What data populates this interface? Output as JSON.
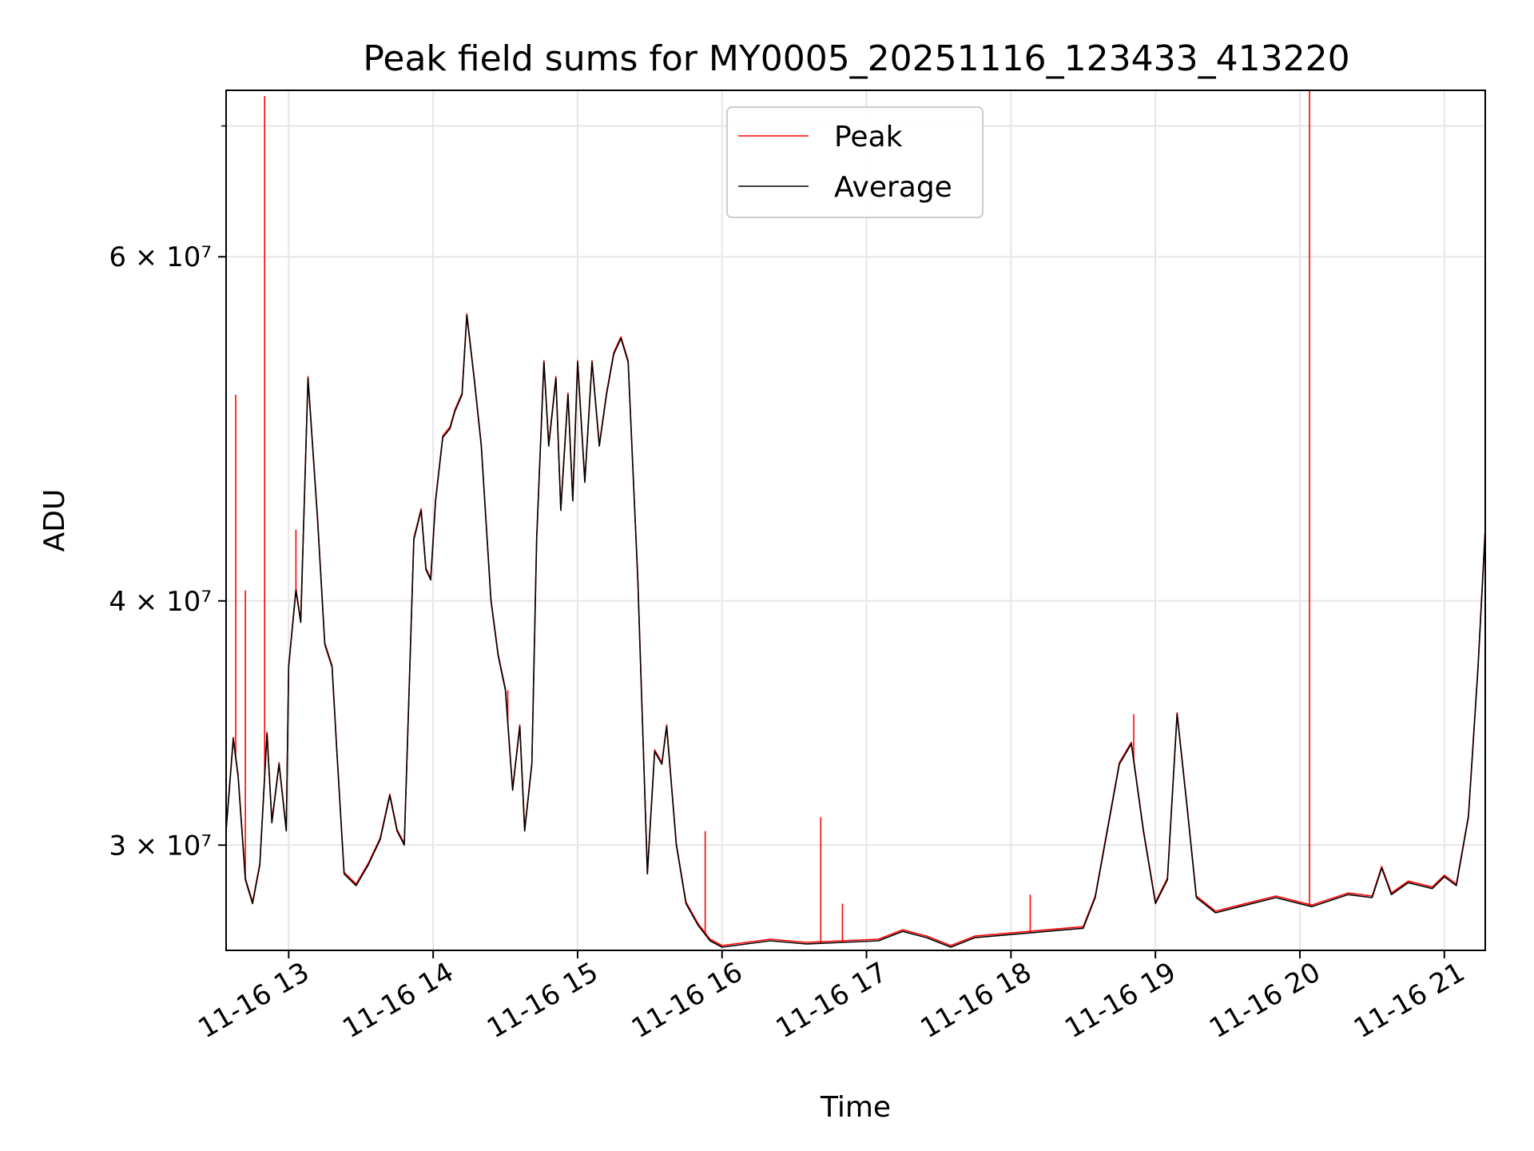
{
  "chart_data": {
    "type": "line",
    "title": "Peak field sums for MY0005_20251116_123433_413220",
    "xlabel": "Time",
    "ylabel": "ADU",
    "yscale": "log",
    "grid": true,
    "legend_position": "upper center",
    "xlim": [
      "11-16 12:34",
      "11-16 21:17"
    ],
    "ylim": [
      26500000,
      73000000
    ],
    "x_ticks": [
      "11-16 13",
      "11-16 14",
      "11-16 15",
      "11-16 16",
      "11-16 17",
      "11-16 18",
      "11-16 19",
      "11-16 20",
      "11-16 21"
    ],
    "y_ticks": [
      {
        "value": 30000000,
        "label": "3 × 10⁷"
      },
      {
        "value": 40000000,
        "label": "4 × 10⁷"
      },
      {
        "value": 60000000,
        "label": "6 × 10⁷"
      }
    ],
    "y_minor_ticks": [
      70000000
    ],
    "series": [
      {
        "name": "Peak",
        "color": "#ff0000",
        "spikes": [
          {
            "time": "11-16 12:38",
            "value": 51000000
          },
          {
            "time": "11-16 12:42",
            "value": 40500000
          },
          {
            "time": "11-16 12:50",
            "value": 72500000
          },
          {
            "time": "11-16 13:03",
            "value": 43500000
          },
          {
            "time": "11-16 14:31",
            "value": 36000000
          },
          {
            "time": "11-16 15:53",
            "value": 30500000
          },
          {
            "time": "11-16 16:41",
            "value": 31000000
          },
          {
            "time": "11-16 16:50",
            "value": 28000000
          },
          {
            "time": "11-16 18:08",
            "value": 28300000
          },
          {
            "time": "11-16 18:51",
            "value": 35000000
          },
          {
            "time": "11-16 20:04",
            "value": 73000000
          }
        ]
      },
      {
        "name": "Average",
        "color": "#000000",
        "points": [
          [
            "11-16 12:34",
            30500000
          ],
          [
            "11-16 12:37",
            34000000
          ],
          [
            "11-16 12:39",
            32500000
          ],
          [
            "11-16 12:42",
            28800000
          ],
          [
            "11-16 12:45",
            28000000
          ],
          [
            "11-16 12:48",
            29300000
          ],
          [
            "11-16 12:51",
            34200000
          ],
          [
            "11-16 12:53",
            30800000
          ],
          [
            "11-16 12:56",
            33000000
          ],
          [
            "11-16 12:59",
            30500000
          ],
          [
            "11-16 13:00",
            37000000
          ],
          [
            "11-16 13:03",
            40500000
          ],
          [
            "11-16 13:05",
            39000000
          ],
          [
            "11-16 13:08",
            52000000
          ],
          [
            "11-16 13:12",
            44000000
          ],
          [
            "11-16 13:15",
            38000000
          ],
          [
            "11-16 13:18",
            37000000
          ],
          [
            "11-16 13:20",
            33500000
          ],
          [
            "11-16 13:23",
            29000000
          ],
          [
            "11-16 13:28",
            28600000
          ],
          [
            "11-16 13:33",
            29300000
          ],
          [
            "11-16 13:38",
            30200000
          ],
          [
            "11-16 13:42",
            31800000
          ],
          [
            "11-16 13:45",
            30500000
          ],
          [
            "11-16 13:48",
            30000000
          ],
          [
            "11-16 13:52",
            43000000
          ],
          [
            "11-16 13:55",
            44500000
          ],
          [
            "11-16 13:57",
            41500000
          ],
          [
            "11-16 13:59",
            41000000
          ],
          [
            "11-16 14:01",
            45000000
          ],
          [
            "11-16 14:04",
            48500000
          ],
          [
            "11-16 14:07",
            49000000
          ],
          [
            "11-16 14:09",
            50000000
          ],
          [
            "11-16 14:12",
            51000000
          ],
          [
            "11-16 14:14",
            56000000
          ],
          [
            "11-16 14:17",
            52000000
          ],
          [
            "11-16 14:20",
            48000000
          ],
          [
            "11-16 14:24",
            40000000
          ],
          [
            "11-16 14:27",
            37500000
          ],
          [
            "11-16 14:30",
            36000000
          ],
          [
            "11-16 14:33",
            32000000
          ],
          [
            "11-16 14:36",
            34500000
          ],
          [
            "11-16 14:38",
            30500000
          ],
          [
            "11-16 14:41",
            33000000
          ],
          [
            "11-16 14:43",
            43000000
          ],
          [
            "11-16 14:46",
            53000000
          ],
          [
            "11-16 14:48",
            48000000
          ],
          [
            "11-16 14:51",
            52000000
          ],
          [
            "11-16 14:53",
            44500000
          ],
          [
            "11-16 14:56",
            51000000
          ],
          [
            "11-16 14:58",
            45000000
          ],
          [
            "11-16 15:00",
            53000000
          ],
          [
            "11-16 15:03",
            46000000
          ],
          [
            "11-16 15:06",
            53000000
          ],
          [
            "11-16 15:09",
            48000000
          ],
          [
            "11-16 15:12",
            51000000
          ],
          [
            "11-16 15:15",
            53500000
          ],
          [
            "11-16 15:18",
            54500000
          ],
          [
            "11-16 15:21",
            53000000
          ],
          [
            "11-16 15:25",
            41000000
          ],
          [
            "11-16 15:29",
            29000000
          ],
          [
            "11-16 15:32",
            33500000
          ],
          [
            "11-16 15:35",
            33000000
          ],
          [
            "11-16 15:37",
            34500000
          ],
          [
            "11-16 15:41",
            30000000
          ],
          [
            "11-16 15:45",
            28000000
          ],
          [
            "11-16 15:50",
            27300000
          ],
          [
            "11-16 15:55",
            26800000
          ],
          [
            "11-16 16:00",
            26600000
          ],
          [
            "11-16 16:10",
            26700000
          ],
          [
            "11-16 16:20",
            26800000
          ],
          [
            "11-16 16:35",
            26700000
          ],
          [
            "11-16 16:50",
            26750000
          ],
          [
            "11-16 17:05",
            26800000
          ],
          [
            "11-16 17:15",
            27100000
          ],
          [
            "11-16 17:25",
            26900000
          ],
          [
            "11-16 17:35",
            26600000
          ],
          [
            "11-16 17:45",
            26900000
          ],
          [
            "11-16 18:00",
            27000000
          ],
          [
            "11-16 18:15",
            27100000
          ],
          [
            "11-16 18:30",
            27200000
          ],
          [
            "11-16 18:35",
            28200000
          ],
          [
            "11-16 18:40",
            30500000
          ],
          [
            "11-16 18:45",
            33000000
          ],
          [
            "11-16 18:50",
            33800000
          ],
          [
            "11-16 18:55",
            30500000
          ],
          [
            "11-16 19:00",
            28000000
          ],
          [
            "11-16 19:05",
            28800000
          ],
          [
            "11-16 19:09",
            35000000
          ],
          [
            "11-16 19:13",
            31500000
          ],
          [
            "11-16 19:17",
            28200000
          ],
          [
            "11-16 19:25",
            27700000
          ],
          [
            "11-16 19:35",
            27900000
          ],
          [
            "11-16 19:50",
            28200000
          ],
          [
            "11-16 20:05",
            27900000
          ],
          [
            "11-16 20:20",
            28300000
          ],
          [
            "11-16 20:30",
            28200000
          ],
          [
            "11-16 20:34",
            29200000
          ],
          [
            "11-16 20:38",
            28300000
          ],
          [
            "11-16 20:45",
            28700000
          ],
          [
            "11-16 20:55",
            28500000
          ],
          [
            "11-16 21:00",
            28900000
          ],
          [
            "11-16 21:05",
            28600000
          ],
          [
            "11-16 21:10",
            31000000
          ],
          [
            "11-16 21:14",
            37000000
          ],
          [
            "11-16 21:17",
            43500000
          ]
        ]
      }
    ]
  }
}
